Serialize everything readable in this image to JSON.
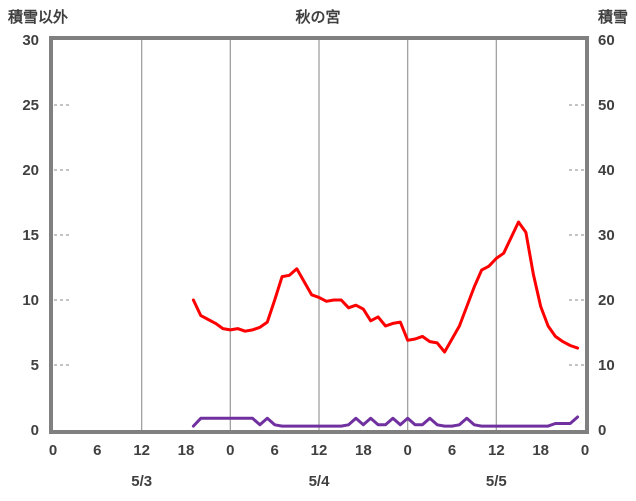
{
  "header": {
    "left_axis_title": "積雪以外",
    "title": "秋の宮",
    "right_axis_title": "積雪"
  },
  "chart_data": {
    "type": "line",
    "title": "秋の宮",
    "left_axis": {
      "label": "積雪以外",
      "min": 0,
      "max": 30,
      "ticks": [
        0,
        5,
        10,
        15,
        20,
        25,
        30
      ]
    },
    "right_axis": {
      "label": "積雪",
      "min": 0,
      "max": 60,
      "ticks": [
        0,
        10,
        20,
        30,
        40,
        50,
        60
      ]
    },
    "x_axis": {
      "hours_span": 72,
      "tick_interval_hours": 6,
      "tick_labels": [
        "0",
        "6",
        "12",
        "18",
        "0",
        "6",
        "12",
        "18",
        "0",
        "6",
        "12",
        "18",
        "0"
      ],
      "day_labels": [
        {
          "label": "5/3",
          "center_hour": 12
        },
        {
          "label": "5/4",
          "center_hour": 36
        },
        {
          "label": "5/5",
          "center_hour": 60
        }
      ],
      "gridline_hours": [
        12,
        24,
        36,
        48,
        60
      ]
    },
    "series": [
      {
        "name": "積雪以外",
        "color": "#ff0000",
        "axis": "left",
        "start_hour": 19,
        "interval_hours": 1,
        "values": [
          10.0,
          8.8,
          8.5,
          8.2,
          7.8,
          7.7,
          7.8,
          7.6,
          7.7,
          7.9,
          8.3,
          10.0,
          11.8,
          11.9,
          12.4,
          11.4,
          10.4,
          10.2,
          9.9,
          10.0,
          10.0,
          9.4,
          9.6,
          9.3,
          8.4,
          8.7,
          8.0,
          8.2,
          8.3,
          6.9,
          7.0,
          7.2,
          6.8,
          6.7,
          6.0,
          7.0,
          8.0,
          9.5,
          11.0,
          12.3,
          12.6,
          13.2,
          13.6,
          14.8,
          16.0,
          15.2,
          12.0,
          9.5,
          8.0,
          7.2,
          6.8,
          6.5,
          6.3
        ]
      },
      {
        "name": "積雪",
        "color": "#7030a0",
        "axis": "right",
        "start_hour": 19,
        "interval_hours": 1,
        "values": [
          0.6,
          1.8,
          1.8,
          1.8,
          1.8,
          1.8,
          1.8,
          1.8,
          1.8,
          0.8,
          1.8,
          0.8,
          0.6,
          0.6,
          0.6,
          0.6,
          0.6,
          0.6,
          0.6,
          0.6,
          0.6,
          0.8,
          1.8,
          0.8,
          1.8,
          0.8,
          0.8,
          1.8,
          0.8,
          1.8,
          0.8,
          0.8,
          1.8,
          0.8,
          0.6,
          0.6,
          0.8,
          1.8,
          0.8,
          0.6,
          0.6,
          0.6,
          0.6,
          0.6,
          0.6,
          0.6,
          0.6,
          0.6,
          0.6,
          1.0,
          1.0,
          1.0,
          2.0
        ]
      }
    ],
    "style": {
      "frame_color": "#808080",
      "gridline_color": "#a0a0a0",
      "edge_tick_color": "#a0a0a0",
      "text_color": "#404040",
      "line_width": 3
    },
    "grid": true,
    "legend_position": "none"
  }
}
